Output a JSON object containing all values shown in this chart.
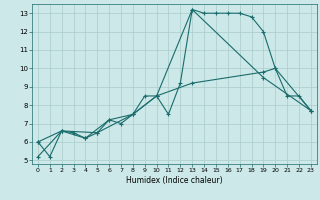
{
  "xlabel": "Humidex (Indice chaleur)",
  "background_color": "#cce8e8",
  "grid_color": "#aacccc",
  "line_color": "#1a6b6b",
  "xlim": [
    -0.5,
    23.5
  ],
  "ylim": [
    4.8,
    13.5
  ],
  "yticks": [
    5,
    6,
    7,
    8,
    9,
    10,
    11,
    12,
    13
  ],
  "xticks": [
    0,
    1,
    2,
    3,
    4,
    5,
    6,
    7,
    8,
    9,
    10,
    11,
    12,
    13,
    14,
    15,
    16,
    17,
    18,
    19,
    20,
    21,
    22,
    23
  ],
  "line1_x": [
    0,
    1,
    2,
    3,
    4,
    5,
    6,
    7,
    8,
    9,
    10,
    11,
    12,
    13,
    14,
    15,
    16,
    17,
    18,
    19,
    20,
    21,
    22,
    23
  ],
  "line1_y": [
    6.0,
    5.2,
    6.6,
    6.5,
    6.2,
    6.5,
    7.2,
    7.0,
    7.5,
    8.5,
    8.5,
    7.5,
    9.2,
    13.2,
    13.0,
    13.0,
    13.0,
    13.0,
    12.8,
    12.0,
    10.0,
    8.5,
    8.5,
    7.7
  ],
  "line2_x": [
    0,
    2,
    4,
    6,
    8,
    10,
    13,
    19,
    23
  ],
  "line2_y": [
    6.0,
    6.6,
    6.2,
    7.2,
    7.5,
    8.5,
    13.2,
    9.5,
    7.7
  ],
  "line3_x": [
    0,
    2,
    5,
    8,
    10,
    13,
    19,
    20,
    23
  ],
  "line3_y": [
    5.2,
    6.6,
    6.5,
    7.5,
    8.5,
    9.2,
    9.8,
    10.0,
    7.7
  ]
}
